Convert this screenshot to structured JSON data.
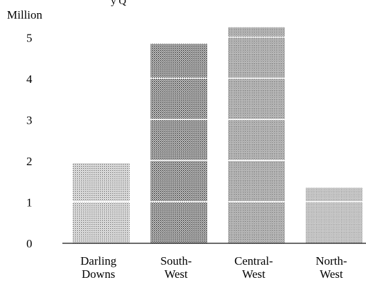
{
  "chart_data": {
    "type": "bar",
    "title_fragment": "y Q",
    "ylabel": "Million",
    "categories": [
      [
        "Darling",
        "Downs"
      ],
      [
        "South-",
        "West"
      ],
      [
        "Central-",
        "West"
      ],
      [
        "North-",
        "West"
      ]
    ],
    "values": [
      1.95,
      4.85,
      5.25,
      1.35
    ],
    "yticks": [
      0,
      1,
      2,
      3,
      4,
      5
    ],
    "ylim": [
      0,
      5.3
    ],
    "grid": false,
    "bar_fill": "dotted grey halftone stacked in 1-million bands"
  }
}
